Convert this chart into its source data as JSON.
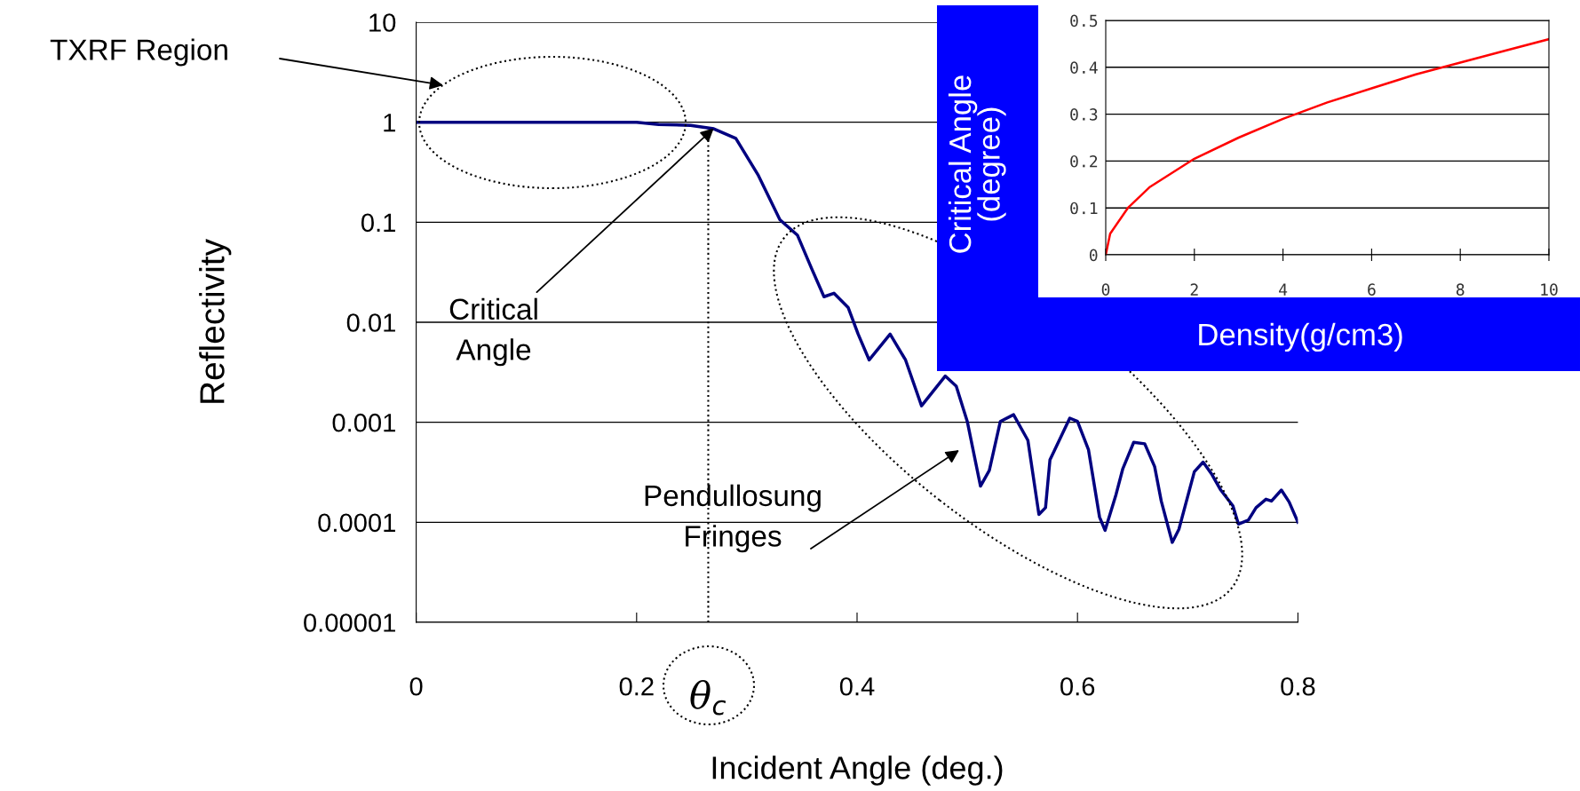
{
  "chart_data": [
    {
      "type": "line",
      "xlabel": "Incident Angle (deg.)",
      "ylabel": "Reflectivity",
      "log": "y",
      "grid": "y",
      "xlim": [
        0,
        0.8
      ],
      "xticks": [
        0,
        0.2,
        0.4,
        0.6,
        0.8
      ],
      "ylim": [
        1e-05,
        10
      ],
      "yticks": [
        {
          "value": 1e-05,
          "label": "0.00001"
        },
        0.0001,
        0.001,
        0.01,
        0.1,
        1,
        10
      ],
      "series": [
        {
          "color": "#000080",
          "x": [
            0,
            0.2,
            0.22,
            0.249,
            0.27,
            0.29,
            0.31,
            0.33,
            0.346,
            0.359,
            0.37,
            0.379,
            0.392,
            0.401,
            0.411,
            0.43,
            0.444,
            0.4585,
            0.48,
            0.49,
            0.5,
            0.512,
            0.52,
            0.53,
            0.542,
            0.555,
            0.565,
            0.571,
            0.575,
            0.593,
            0.6,
            0.61,
            0.62,
            0.625,
            0.635,
            0.641,
            0.651,
            0.661,
            0.67,
            0.676,
            0.686,
            0.692,
            0.706,
            0.714,
            0.722,
            0.73,
            0.741,
            0.746,
            0.755,
            0.762,
            0.771,
            0.776,
            0.785,
            0.792,
            0.8
          ],
          "values": [
            1,
            1,
            0.95,
            0.93,
            0.86,
            0.69,
            0.3,
            0.106,
            0.074,
            0.034,
            0.018,
            0.0195,
            0.014,
            0.0076,
            0.0042,
            0.0076,
            0.0042,
            0.00146,
            0.0029,
            0.0023,
            0.00102,
            0.00023,
            0.00033,
            0.00102,
            0.00119,
            0.00066,
            0.00012,
            0.00014,
            0.00042,
            0.0011,
            0.00102,
            0.00053,
            0.000113,
            8.3e-05,
            0.00019,
            0.00034,
            0.00063,
            0.00061,
            0.00036,
            0.000163,
            6.3e-05,
            8.5e-05,
            0.00032,
            0.0004,
            0.0003,
            0.00021,
            0.000146,
            9.6e-05,
            0.000105,
            0.00014,
            0.00017,
            0.000163,
            0.00021,
            0.00016,
            0.0001
          ]
        }
      ],
      "ref_lines": [
        {
          "axis": "x",
          "value": 0.265,
          "label": "θ$_{c}$",
          "line_style": "dotted",
          "color": "#000000"
        }
      ],
      "annotations": [
        "TXRF Region",
        {
          "text": "Critical\nAngle",
          "x": 0.27,
          "y": 0.87
        },
        "Pendullosung\nFringes"
      ]
    },
    {
      "type": "line",
      "xlabel": "Density(g/cm3)",
      "ylabel": "Critical Angle\n(degree)",
      "grid": "y",
      "xlim": [
        0,
        10
      ],
      "xticks": [
        0,
        2,
        4,
        6,
        8,
        10
      ],
      "ylim": [
        0,
        0.5
      ],
      "yticks": [
        0,
        0.1,
        0.2,
        0.3,
        0.4,
        0.5
      ],
      "series": [
        {
          "color": "#ff0000",
          "x": [
            0,
            0.1,
            0.5,
            1,
            2,
            3,
            4,
            5,
            6,
            7,
            8,
            9,
            10
          ],
          "values": [
            0,
            0.045,
            0.1,
            0.145,
            0.205,
            0.25,
            0.29,
            0.325,
            0.355,
            0.385,
            0.41,
            0.435,
            0.46
          ]
        }
      ]
    }
  ]
}
